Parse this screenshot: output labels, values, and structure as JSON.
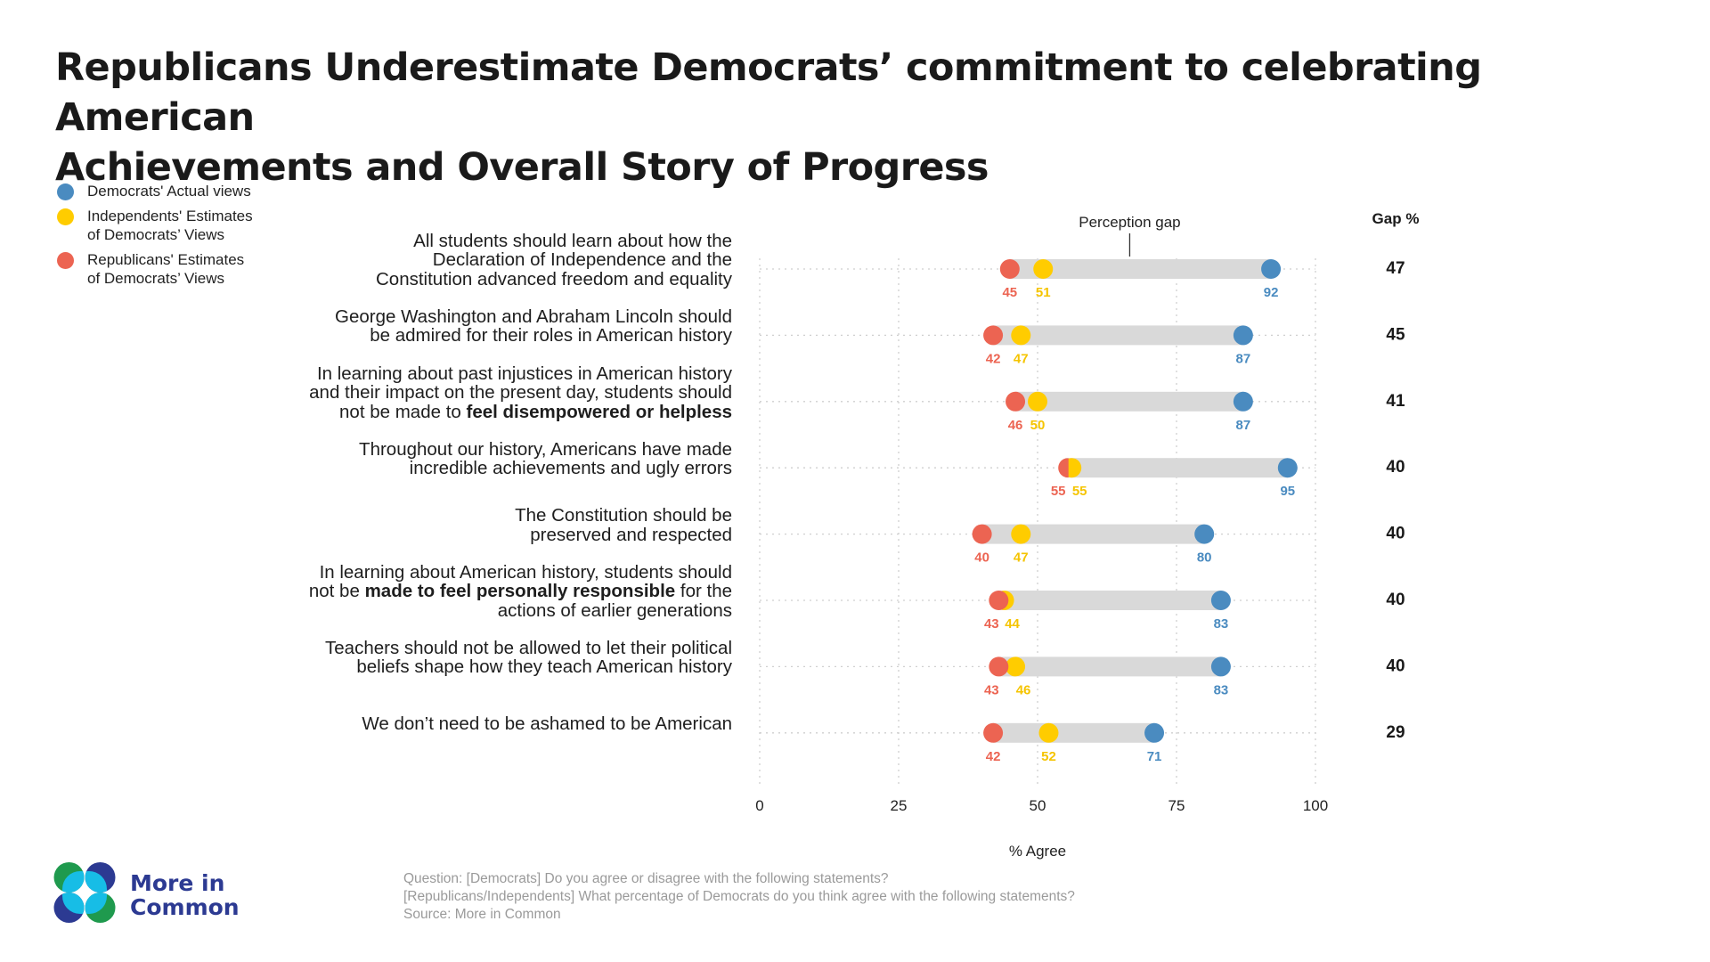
{
  "title": {
    "line1": "Republicans Underestimate Democrats’ commitment to celebrating American",
    "line2": "Achievements and Overall Story of Progress"
  },
  "legend": [
    {
      "key": "democrats_actual",
      "label_lines": [
        "Democrats' Actual views"
      ],
      "color": "#4a8bc0"
    },
    {
      "key": "independents_estimate",
      "label_lines": [
        "Independents' Estimates",
        "of Democrats’ Views"
      ],
      "color": "#ffcc00"
    },
    {
      "key": "republicans_estimate",
      "label_lines": [
        "Republicans' Estimates",
        "of Democrats’ Views"
      ],
      "color": "#ec6452"
    }
  ],
  "colors": {
    "democrats": "#4a8bc0",
    "independents": "#ffcc00",
    "republicans": "#ec6452",
    "bar": "#d9d9d9",
    "grid": "#cfcfcf"
  },
  "chart_data": {
    "type": "dot-range",
    "title": "Republicans Underestimate Democrats’ commitment to celebrating American Achievements and Overall Story of Progress",
    "xlabel": "% Agree",
    "xlim": [
      0,
      100
    ],
    "xticks": [
      0,
      25,
      50,
      75,
      100
    ],
    "grid": true,
    "annotation": "Perception gap",
    "gap_header": "Gap %",
    "legend_position": "top-left",
    "series": [
      {
        "name": "Democrats' Actual views",
        "key": "democrats"
      },
      {
        "name": "Independents' Estimates of Democrats’ Views",
        "key": "independents"
      },
      {
        "name": "Republicans' Estimates of Democrats’ Views",
        "key": "republicans"
      }
    ],
    "rows": [
      {
        "label_html": "All students should learn about how the<br>Declaration of Independence and the<br>Constitution advanced freedom and equality",
        "label": "All students should learn about how the Declaration of Independence and the Constitution advanced freedom and equality",
        "republicans": 45,
        "independents": 51,
        "democrats": 92,
        "gap": 47
      },
      {
        "label_html": "George Washington and Abraham Lincoln should<br>be admired for their roles in American history",
        "label": "George Washington and Abraham Lincoln should be admired for their roles in American history",
        "republicans": 42,
        "independents": 47,
        "democrats": 87,
        "gap": 45
      },
      {
        "label_html": "In learning about past injustices in American history<br>and their impact on the present day, students should<br>not be made to <b>feel disempowered or helpless</b>",
        "label": "In learning about past injustices in American history and their impact on the present day, students should not be made to feel disempowered or helpless",
        "republicans": 46,
        "independents": 50,
        "democrats": 87,
        "gap": 41
      },
      {
        "label_html": "Throughout our history, Americans have made<br>incredible achievements and ugly errors",
        "label": "Throughout our history, Americans have made incredible achievements and ugly errors",
        "republicans": 55,
        "independents": 55,
        "democrats": 95,
        "gap": 40
      },
      {
        "label_html": "The Constitution should be<br>preserved and respected",
        "label": "The Constitution should be preserved and respected",
        "republicans": 40,
        "independents": 47,
        "democrats": 80,
        "gap": 40
      },
      {
        "label_html": "In learning about American history, students should<br>not be <b>made to feel personally responsible</b> for the<br>actions of earlier generations",
        "label": "In learning about American history, students should not be made to feel personally responsible for the actions of earlier generations",
        "republicans": 43,
        "independents": 44,
        "democrats": 83,
        "gap": 40
      },
      {
        "label_html": "Teachers should not be allowed to let their political<br>beliefs shape how they teach American history",
        "label": "Teachers should not be allowed to let their political beliefs shape how they teach American history",
        "republicans": 43,
        "independents": 46,
        "democrats": 83,
        "gap": 40
      },
      {
        "label_html": "We don’t need to be ashamed to be American",
        "label": "We don’t need to be ashamed to be American",
        "republicans": 42,
        "independents": 52,
        "democrats": 71,
        "gap": 29
      }
    ]
  },
  "footer": {
    "lines": [
      "Question: [Democrats] Do you agree or disagree with the following statements?",
      "[Republicans/Independents] What percentage of Democrats do you think agree with the following statements?",
      "Source: More in Common"
    ]
  },
  "logo": {
    "line1": "More in",
    "line2": "Common",
    "colors": {
      "green": "#1f9a4e",
      "navy": "#2c3a92",
      "cyan": "#17bde6"
    }
  }
}
